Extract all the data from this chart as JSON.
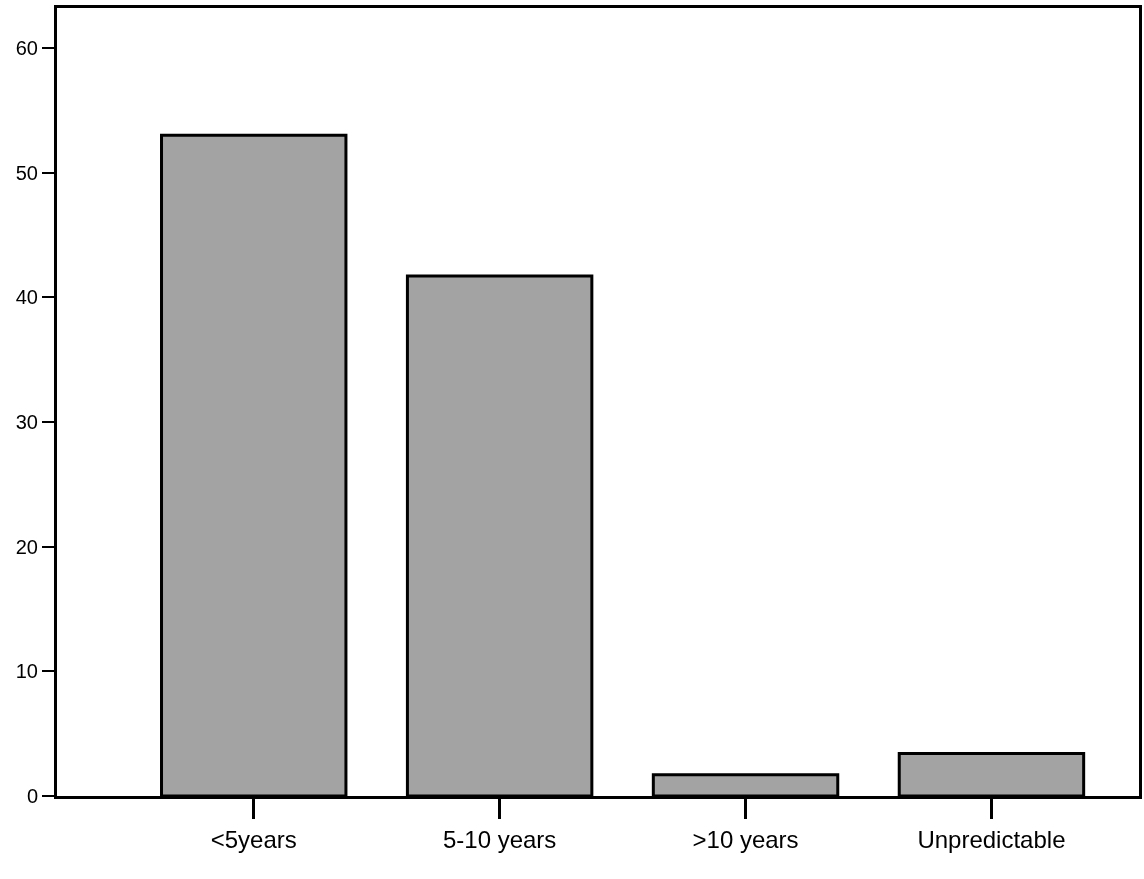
{
  "chart_data": {
    "type": "bar",
    "categories": [
      "<5years",
      "5-10 years",
      ">10 years",
      "Unpredictable"
    ],
    "values": [
      53,
      41.7,
      1.7,
      3.4
    ],
    "color": "#a3a3a3",
    "ylim": [
      0,
      63.2
    ],
    "yticks": [
      0,
      10,
      20,
      30,
      40,
      50,
      60
    ]
  }
}
